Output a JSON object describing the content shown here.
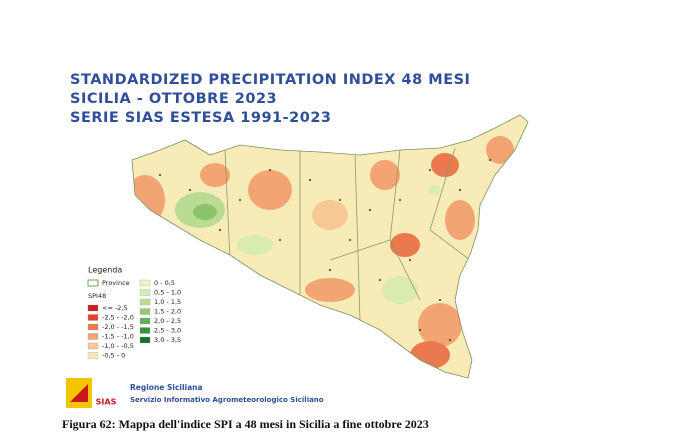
{
  "map": {
    "title_lines": [
      "STANDARDIZED PRECIPITATION INDEX 48 MESI",
      "SICILIA - OTTOBRE 2023",
      "SERIE SIAS ESTESA 1991-2023"
    ],
    "legend": {
      "title": "Legenda",
      "province": "Province",
      "index": "SPI48",
      "left": [
        {
          "label": "<= -2,5",
          "color": "#c81e1e"
        },
        {
          "label": "-2,5 - -2,0",
          "color": "#e0452c"
        },
        {
          "label": "-2,0 - -1,5",
          "color": "#ea7a4e"
        },
        {
          "label": "-1,5 - -1,0",
          "color": "#f2a472"
        },
        {
          "label": "-1,0 - -0,5",
          "color": "#f8c894"
        },
        {
          "label": "-0,5 - 0",
          "color": "#fde6b4"
        }
      ],
      "right": [
        {
          "label": "0 - 0,5",
          "color": "#f3f1c0"
        },
        {
          "label": "0,5 - 1,0",
          "color": "#d9ebaf"
        },
        {
          "label": "1,0 - 1,5",
          "color": "#bbdd92"
        },
        {
          "label": "1,5 - 2,0",
          "color": "#93c974"
        },
        {
          "label": "2,0 - 2,5",
          "color": "#64b054"
        },
        {
          "label": "2,5 - 3,0",
          "color": "#34923c"
        },
        {
          "label": "3,0 - 3,5",
          "color": "#137028"
        }
      ]
    },
    "logo_text": "SIAS",
    "footer": {
      "line1": "Regione Siciliana",
      "line2": "Servizio Informativo Agrometeorologico Siciliano"
    },
    "caption": "Figura 62: Mappa dell'indice SPI a 48 mesi in Sicilia a fine ottobre 2023"
  }
}
